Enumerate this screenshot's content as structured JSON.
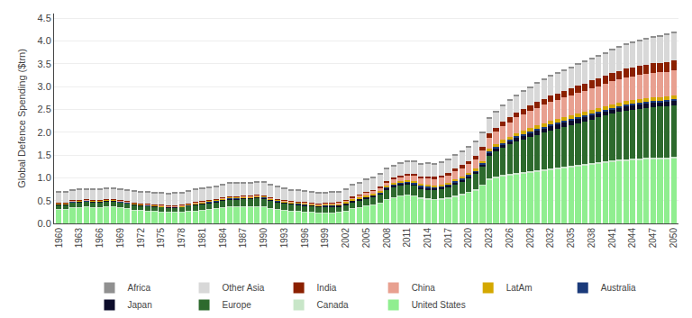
{
  "chart_data": {
    "type": "bar",
    "stacked": true,
    "grid": true,
    "legend": "bottom",
    "ylabel": "Global Defence Spending ($trn)",
    "x": [
      1960,
      1961,
      1962,
      1963,
      1964,
      1965,
      1966,
      1967,
      1968,
      1969,
      1970,
      1971,
      1972,
      1973,
      1974,
      1975,
      1976,
      1977,
      1978,
      1979,
      1980,
      1981,
      1982,
      1983,
      1984,
      1985,
      1986,
      1987,
      1988,
      1989,
      1990,
      1991,
      1992,
      1993,
      1994,
      1995,
      1996,
      1997,
      1998,
      1999,
      2000,
      2001,
      2002,
      2003,
      2004,
      2005,
      2006,
      2007,
      2008,
      2009,
      2010,
      2011,
      2012,
      2013,
      2014,
      2015,
      2016,
      2017,
      2018,
      2019,
      2020,
      2021,
      2022,
      2023,
      2024,
      2025,
      2026,
      2027,
      2028,
      2029,
      2030,
      2031,
      2032,
      2033,
      2034,
      2035,
      2036,
      2037,
      2038,
      2039,
      2040,
      2041,
      2042,
      2043,
      2044,
      2045,
      2046,
      2047,
      2048,
      2049,
      2050
    ],
    "xlim": [
      1959.3,
      2050.7
    ],
    "xticks": [
      1960,
      1963,
      1966,
      1969,
      1972,
      1975,
      1978,
      1981,
      1984,
      1987,
      1990,
      1993,
      1996,
      1999,
      2002,
      2005,
      2008,
      2011,
      2014,
      2017,
      2020,
      2023,
      2026,
      2029,
      2032,
      2035,
      2038,
      2041,
      2044,
      2047,
      2050
    ],
    "ylim": [
      0,
      4.6
    ],
    "yticks": [
      {
        "value": 0.0,
        "label": "0.0"
      },
      0.5,
      {
        "value": 1.0,
        "label": "1.0"
      },
      1.5,
      {
        "value": 2.0,
        "label": "2.0"
      },
      2.5,
      {
        "value": 3.0,
        "label": "3.0"
      },
      3.5,
      {
        "value": 4.0,
        "label": "4.0"
      },
      4.5
    ],
    "series": [
      {
        "name": "United States",
        "color": "#90ee90",
        "values": [
          0.3,
          0.3,
          0.34,
          0.35,
          0.36,
          0.35,
          0.35,
          0.36,
          0.36,
          0.34,
          0.32,
          0.29,
          0.28,
          0.27,
          0.26,
          0.25,
          0.24,
          0.24,
          0.25,
          0.26,
          0.27,
          0.28,
          0.3,
          0.32,
          0.34,
          0.36,
          0.36,
          0.36,
          0.36,
          0.37,
          0.36,
          0.32,
          0.3,
          0.28,
          0.27,
          0.26,
          0.25,
          0.24,
          0.23,
          0.23,
          0.23,
          0.24,
          0.27,
          0.32,
          0.35,
          0.38,
          0.41,
          0.44,
          0.52,
          0.57,
          0.6,
          0.62,
          0.6,
          0.55,
          0.53,
          0.52,
          0.53,
          0.55,
          0.59,
          0.63,
          0.68,
          0.73,
          0.83,
          0.95,
          1.0,
          1.03,
          1.05,
          1.07,
          1.09,
          1.1,
          1.12,
          1.14,
          1.16,
          1.18,
          1.2,
          1.22,
          1.24,
          1.26,
          1.28,
          1.3,
          1.32,
          1.34,
          1.36,
          1.37,
          1.38,
          1.39,
          1.4,
          1.41,
          1.41,
          1.41,
          1.42
        ]
      },
      {
        "name": "Canada",
        "color": "#c8e6c8",
        "values": [
          0.01,
          0.01,
          0.01,
          0.01,
          0.01,
          0.01,
          0.01,
          0.01,
          0.01,
          0.01,
          0.01,
          0.01,
          0.01,
          0.01,
          0.01,
          0.01,
          0.01,
          0.01,
          0.01,
          0.01,
          0.01,
          0.01,
          0.01,
          0.01,
          0.01,
          0.01,
          0.01,
          0.01,
          0.01,
          0.01,
          0.01,
          0.01,
          0.01,
          0.01,
          0.01,
          0.01,
          0.01,
          0.01,
          0.01,
          0.01,
          0.01,
          0.01,
          0.01,
          0.01,
          0.01,
          0.01,
          0.01,
          0.01,
          0.01,
          0.01,
          0.01,
          0.02,
          0.02,
          0.02,
          0.02,
          0.02,
          0.02,
          0.02,
          0.02,
          0.02,
          0.02,
          0.02,
          0.02,
          0.03,
          0.03,
          0.03,
          0.03,
          0.03,
          0.03,
          0.04,
          0.04,
          0.04,
          0.04,
          0.04,
          0.04,
          0.04,
          0.04,
          0.04,
          0.04,
          0.04,
          0.04,
          0.04,
          0.04,
          0.04,
          0.04,
          0.04,
          0.04,
          0.04,
          0.04,
          0.04,
          0.04
        ]
      },
      {
        "name": "Europe",
        "color": "#2d6a2d",
        "values": [
          0.1,
          0.1,
          0.11,
          0.11,
          0.11,
          0.11,
          0.11,
          0.12,
          0.12,
          0.11,
          0.11,
          0.11,
          0.1,
          0.1,
          0.1,
          0.1,
          0.1,
          0.1,
          0.1,
          0.11,
          0.12,
          0.13,
          0.14,
          0.14,
          0.15,
          0.16,
          0.16,
          0.17,
          0.17,
          0.18,
          0.18,
          0.17,
          0.16,
          0.15,
          0.14,
          0.14,
          0.13,
          0.13,
          0.12,
          0.12,
          0.12,
          0.12,
          0.13,
          0.14,
          0.15,
          0.16,
          0.17,
          0.18,
          0.2,
          0.21,
          0.22,
          0.21,
          0.2,
          0.19,
          0.19,
          0.19,
          0.2,
          0.22,
          0.24,
          0.26,
          0.29,
          0.33,
          0.4,
          0.5,
          0.55,
          0.6,
          0.65,
          0.69,
          0.72,
          0.75,
          0.78,
          0.81,
          0.84,
          0.86,
          0.88,
          0.9,
          0.92,
          0.94,
          0.96,
          0.98,
          1.0,
          1.02,
          1.04,
          1.06,
          1.07,
          1.08,
          1.09,
          1.1,
          1.11,
          1.12,
          1.13
        ]
      },
      {
        "name": "Japan",
        "color": "#0d0d2b",
        "values": [
          0.01,
          0.01,
          0.01,
          0.01,
          0.01,
          0.01,
          0.01,
          0.01,
          0.01,
          0.01,
          0.01,
          0.01,
          0.01,
          0.01,
          0.01,
          0.01,
          0.01,
          0.01,
          0.01,
          0.01,
          0.02,
          0.02,
          0.02,
          0.02,
          0.02,
          0.02,
          0.02,
          0.02,
          0.02,
          0.02,
          0.02,
          0.02,
          0.02,
          0.02,
          0.02,
          0.02,
          0.02,
          0.02,
          0.02,
          0.03,
          0.03,
          0.03,
          0.03,
          0.03,
          0.03,
          0.03,
          0.03,
          0.04,
          0.04,
          0.04,
          0.04,
          0.04,
          0.04,
          0.04,
          0.04,
          0.04,
          0.04,
          0.04,
          0.05,
          0.05,
          0.05,
          0.05,
          0.05,
          0.06,
          0.07,
          0.07,
          0.07,
          0.08,
          0.08,
          0.09,
          0.09,
          0.09,
          0.09,
          0.09,
          0.09,
          0.09,
          0.09,
          0.09,
          0.09,
          0.09,
          0.09,
          0.09,
          0.09,
          0.09,
          0.09,
          0.09,
          0.09,
          0.09,
          0.09,
          0.09,
          0.09
        ]
      },
      {
        "name": "Australia",
        "color": "#1a3a7a",
        "values": [
          0.005,
          0.005,
          0.005,
          0.005,
          0.005,
          0.005,
          0.005,
          0.005,
          0.005,
          0.005,
          0.005,
          0.005,
          0.005,
          0.005,
          0.005,
          0.005,
          0.005,
          0.005,
          0.005,
          0.005,
          0.005,
          0.005,
          0.005,
          0.005,
          0.005,
          0.005,
          0.005,
          0.005,
          0.005,
          0.005,
          0.005,
          0.005,
          0.005,
          0.005,
          0.005,
          0.005,
          0.005,
          0.005,
          0.005,
          0.005,
          0.01,
          0.01,
          0.01,
          0.01,
          0.01,
          0.01,
          0.01,
          0.01,
          0.02,
          0.02,
          0.02,
          0.02,
          0.02,
          0.02,
          0.02,
          0.02,
          0.02,
          0.02,
          0.02,
          0.02,
          0.02,
          0.02,
          0.02,
          0.03,
          0.03,
          0.03,
          0.03,
          0.04,
          0.04,
          0.04,
          0.04,
          0.04,
          0.04,
          0.04,
          0.04,
          0.04,
          0.04,
          0.04,
          0.04,
          0.04,
          0.04,
          0.04,
          0.04,
          0.04,
          0.04,
          0.04,
          0.04,
          0.04,
          0.04,
          0.04,
          0.04
        ]
      },
      {
        "name": "LatAm",
        "color": "#d4a800",
        "values": [
          0.01,
          0.01,
          0.01,
          0.01,
          0.01,
          0.01,
          0.01,
          0.01,
          0.01,
          0.01,
          0.01,
          0.01,
          0.01,
          0.01,
          0.01,
          0.01,
          0.01,
          0.01,
          0.01,
          0.02,
          0.02,
          0.02,
          0.02,
          0.02,
          0.02,
          0.02,
          0.02,
          0.02,
          0.02,
          0.02,
          0.02,
          0.02,
          0.02,
          0.02,
          0.02,
          0.02,
          0.02,
          0.02,
          0.02,
          0.02,
          0.02,
          0.02,
          0.02,
          0.02,
          0.02,
          0.03,
          0.03,
          0.03,
          0.03,
          0.03,
          0.03,
          0.04,
          0.04,
          0.04,
          0.04,
          0.04,
          0.04,
          0.04,
          0.05,
          0.05,
          0.05,
          0.05,
          0.05,
          0.06,
          0.06,
          0.07,
          0.07,
          0.07,
          0.07,
          0.08,
          0.08,
          0.08,
          0.08,
          0.08,
          0.08,
          0.08,
          0.08,
          0.08,
          0.08,
          0.08,
          0.08,
          0.08,
          0.08,
          0.08,
          0.08,
          0.08,
          0.08,
          0.08,
          0.08,
          0.08,
          0.08
        ]
      },
      {
        "name": "China",
        "color": "#e8a090",
        "values": [
          0.01,
          0.01,
          0.01,
          0.01,
          0.01,
          0.01,
          0.01,
          0.01,
          0.01,
          0.01,
          0.01,
          0.01,
          0.01,
          0.01,
          0.01,
          0.01,
          0.01,
          0.01,
          0.01,
          0.01,
          0.01,
          0.01,
          0.01,
          0.01,
          0.01,
          0.01,
          0.01,
          0.01,
          0.01,
          0.01,
          0.01,
          0.01,
          0.01,
          0.01,
          0.01,
          0.01,
          0.02,
          0.02,
          0.02,
          0.02,
          0.03,
          0.03,
          0.04,
          0.04,
          0.05,
          0.06,
          0.06,
          0.07,
          0.08,
          0.09,
          0.1,
          0.11,
          0.12,
          0.13,
          0.14,
          0.14,
          0.15,
          0.16,
          0.17,
          0.18,
          0.19,
          0.2,
          0.22,
          0.25,
          0.27,
          0.3,
          0.32,
          0.34,
          0.36,
          0.37,
          0.38,
          0.4,
          0.41,
          0.42,
          0.43,
          0.44,
          0.45,
          0.46,
          0.47,
          0.48,
          0.49,
          0.5,
          0.51,
          0.52,
          0.52,
          0.53,
          0.53,
          0.54,
          0.54,
          0.54,
          0.55
        ]
      },
      {
        "name": "India",
        "color": "#8b2000",
        "values": [
          0.01,
          0.01,
          0.01,
          0.01,
          0.01,
          0.01,
          0.01,
          0.01,
          0.01,
          0.01,
          0.01,
          0.01,
          0.01,
          0.01,
          0.01,
          0.01,
          0.01,
          0.01,
          0.01,
          0.01,
          0.01,
          0.01,
          0.01,
          0.01,
          0.01,
          0.01,
          0.01,
          0.01,
          0.01,
          0.01,
          0.01,
          0.01,
          0.01,
          0.01,
          0.01,
          0.01,
          0.01,
          0.01,
          0.01,
          0.01,
          0.01,
          0.01,
          0.01,
          0.02,
          0.02,
          0.02,
          0.02,
          0.03,
          0.03,
          0.03,
          0.03,
          0.03,
          0.04,
          0.04,
          0.05,
          0.05,
          0.05,
          0.06,
          0.06,
          0.07,
          0.07,
          0.08,
          0.08,
          0.09,
          0.09,
          0.1,
          0.11,
          0.11,
          0.12,
          0.12,
          0.13,
          0.13,
          0.14,
          0.14,
          0.15,
          0.15,
          0.16,
          0.16,
          0.17,
          0.17,
          0.17,
          0.18,
          0.18,
          0.19,
          0.19,
          0.2,
          0.2,
          0.21,
          0.21,
          0.22,
          0.22
        ]
      },
      {
        "name": "Other Asia",
        "color": "#d8d8d8",
        "values": [
          0.22,
          0.22,
          0.22,
          0.22,
          0.22,
          0.22,
          0.23,
          0.23,
          0.23,
          0.24,
          0.24,
          0.24,
          0.24,
          0.25,
          0.25,
          0.25,
          0.25,
          0.26,
          0.26,
          0.26,
          0.27,
          0.27,
          0.27,
          0.27,
          0.28,
          0.28,
          0.28,
          0.28,
          0.28,
          0.28,
          0.28,
          0.27,
          0.26,
          0.25,
          0.24,
          0.24,
          0.23,
          0.23,
          0.22,
          0.22,
          0.22,
          0.22,
          0.23,
          0.24,
          0.24,
          0.25,
          0.25,
          0.26,
          0.26,
          0.26,
          0.27,
          0.27,
          0.27,
          0.27,
          0.28,
          0.28,
          0.28,
          0.28,
          0.29,
          0.29,
          0.3,
          0.3,
          0.31,
          0.33,
          0.34,
          0.35,
          0.36,
          0.37,
          0.38,
          0.39,
          0.4,
          0.41,
          0.42,
          0.43,
          0.44,
          0.45,
          0.46,
          0.47,
          0.48,
          0.49,
          0.5,
          0.51,
          0.52,
          0.53,
          0.54,
          0.55,
          0.56,
          0.57,
          0.58,
          0.59,
          0.6
        ]
      },
      {
        "name": "Africa",
        "color": "#909090",
        "values": [
          0.02,
          0.02,
          0.02,
          0.02,
          0.02,
          0.02,
          0.02,
          0.02,
          0.02,
          0.02,
          0.02,
          0.02,
          0.02,
          0.02,
          0.02,
          0.02,
          0.02,
          0.02,
          0.02,
          0.02,
          0.02,
          0.02,
          0.02,
          0.02,
          0.02,
          0.02,
          0.02,
          0.02,
          0.02,
          0.02,
          0.02,
          0.02,
          0.02,
          0.02,
          0.02,
          0.02,
          0.02,
          0.02,
          0.02,
          0.02,
          0.02,
          0.02,
          0.02,
          0.02,
          0.02,
          0.02,
          0.02,
          0.02,
          0.02,
          0.02,
          0.02,
          0.02,
          0.02,
          0.02,
          0.02,
          0.02,
          0.02,
          0.02,
          0.02,
          0.02,
          0.02,
          0.02,
          0.02,
          0.02,
          0.02,
          0.03,
          0.03,
          0.03,
          0.03,
          0.03,
          0.03,
          0.03,
          0.03,
          0.03,
          0.03,
          0.03,
          0.03,
          0.03,
          0.03,
          0.03,
          0.03,
          0.03,
          0.03,
          0.03,
          0.03,
          0.03,
          0.03,
          0.03,
          0.03,
          0.03,
          0.03
        ]
      }
    ]
  }
}
